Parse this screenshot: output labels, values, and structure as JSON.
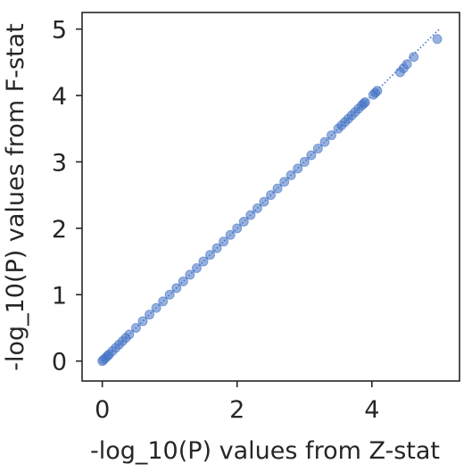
{
  "chart_data": {
    "type": "scatter",
    "title": "",
    "xlabel": "-log_10(P) values from Z-stat",
    "ylabel": "-log_10(P) values from F-stat",
    "xlim": [
      -0.3,
      5.3
    ],
    "ylim": [
      -0.3,
      5.25
    ],
    "x_ticks": [
      0,
      2,
      4
    ],
    "x_tick_labels": [
      "0",
      "2",
      "4"
    ],
    "y_ticks": [
      0,
      1,
      2,
      3,
      4,
      5
    ],
    "y_tick_labels": [
      "0",
      "1",
      "2",
      "3",
      "4",
      "5"
    ],
    "grid": false,
    "identity_line": {
      "from": 0,
      "to": 5,
      "style": "dotted"
    },
    "points": {
      "x": [
        0,
        0.02,
        0.05,
        0.08,
        0.1,
        0.15,
        0.2,
        0.25,
        0.3,
        0.35,
        0.4,
        0.5,
        0.6,
        0.7,
        0.8,
        0.9,
        1.0,
        1.1,
        1.2,
        1.3,
        1.4,
        1.5,
        1.6,
        1.7,
        1.8,
        1.9,
        2.0,
        2.1,
        2.2,
        2.3,
        2.4,
        2.5,
        2.6,
        2.7,
        2.8,
        2.9,
        3.0,
        3.1,
        3.2,
        3.3,
        3.4,
        3.5,
        3.55,
        3.6,
        3.65,
        3.7,
        3.75,
        3.8,
        3.85,
        3.88,
        3.9,
        4.02,
        4.05,
        4.08,
        4.42,
        4.47,
        4.52,
        4.62,
        4.97
      ],
      "y": [
        0,
        0.02,
        0.05,
        0.08,
        0.1,
        0.15,
        0.2,
        0.25,
        0.3,
        0.35,
        0.4,
        0.5,
        0.6,
        0.7,
        0.8,
        0.9,
        1.0,
        1.1,
        1.2,
        1.3,
        1.4,
        1.5,
        1.6,
        1.7,
        1.8,
        1.9,
        2.0,
        2.1,
        2.2,
        2.3,
        2.4,
        2.5,
        2.6,
        2.7,
        2.8,
        2.9,
        3.0,
        3.1,
        3.2,
        3.3,
        3.4,
        3.5,
        3.55,
        3.6,
        3.65,
        3.7,
        3.75,
        3.8,
        3.85,
        3.88,
        3.9,
        4.01,
        4.04,
        4.07,
        4.35,
        4.41,
        4.47,
        4.58,
        4.85
      ]
    },
    "colors": {
      "points": "#4472c4",
      "line": "#4472c4",
      "axes": "#262626"
    }
  }
}
